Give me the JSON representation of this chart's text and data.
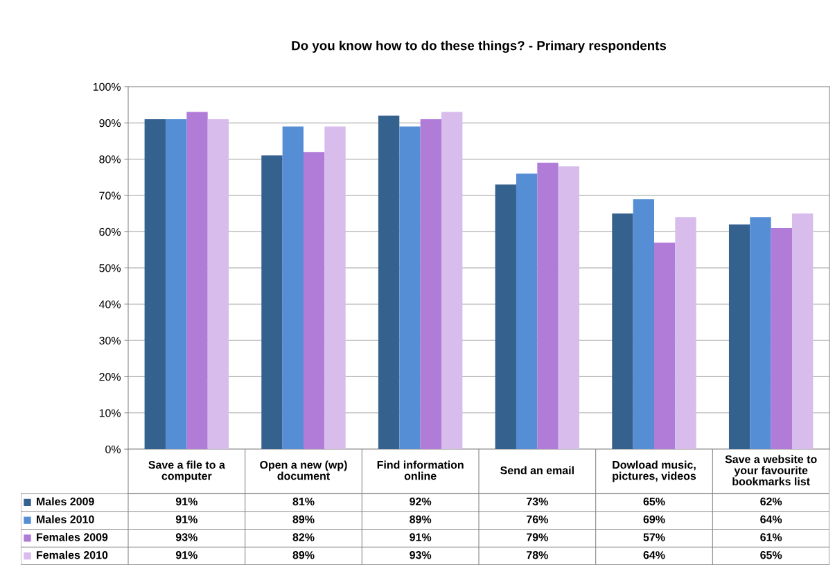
{
  "chart_data": {
    "type": "bar",
    "title": "Do you know how to do these things? - Primary respondents",
    "categories": [
      "Save a file to a computer",
      "Open a new (wp) document",
      "Find information online",
      "Send an email",
      "Dowload music, pictures, videos",
      "Save a website to your favourite bookmarks list"
    ],
    "series": [
      {
        "name": "Males 2009",
        "color": "#35618f",
        "values": [
          91,
          81,
          92,
          73,
          65,
          62
        ],
        "value_labels": [
          "91%",
          "81%",
          "92%",
          "73%",
          "65%",
          "62%"
        ]
      },
      {
        "name": "Males 2010",
        "color": "#558ed5",
        "values": [
          91,
          89,
          89,
          76,
          69,
          64
        ],
        "value_labels": [
          "91%",
          "89%",
          "89%",
          "76%",
          "69%",
          "64%"
        ]
      },
      {
        "name": "Females 2009",
        "color": "#b07cd8",
        "values": [
          93,
          82,
          91,
          79,
          57,
          61
        ],
        "value_labels": [
          "93%",
          "82%",
          "91%",
          "79%",
          "57%",
          "61%"
        ]
      },
      {
        "name": "Females 2010",
        "color": "#d8bcec",
        "values": [
          91,
          89,
          93,
          78,
          64,
          65
        ],
        "value_labels": [
          "91%",
          "89%",
          "93%",
          "78%",
          "64%",
          "65%"
        ]
      }
    ],
    "ylim": [
      0,
      100
    ],
    "yticks": [
      {
        "value": 0,
        "label": "0%"
      },
      {
        "value": 10,
        "label": "10%"
      },
      {
        "value": 20,
        "label": "20%"
      },
      {
        "value": 30,
        "label": "30%"
      },
      {
        "value": 40,
        "label": "40%"
      },
      {
        "value": 50,
        "label": "50%"
      },
      {
        "value": 60,
        "label": "60%"
      },
      {
        "value": 70,
        "label": "70%"
      },
      {
        "value": 80,
        "label": "80%"
      },
      {
        "value": 90,
        "label": "90%"
      },
      {
        "value": 100,
        "label": "100%"
      }
    ],
    "grid": "y",
    "legend": "bottom left"
  }
}
